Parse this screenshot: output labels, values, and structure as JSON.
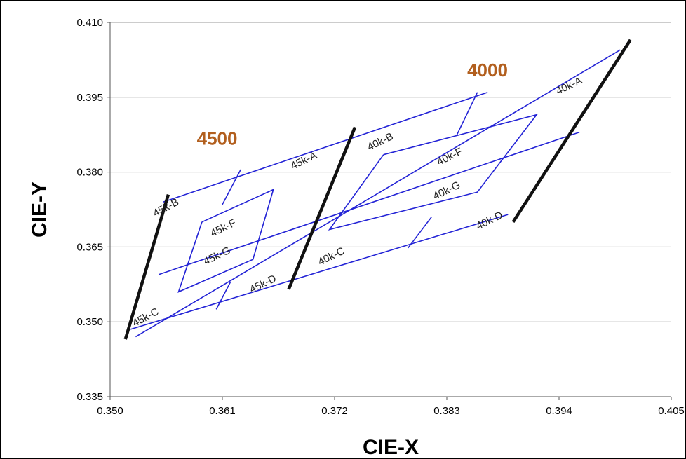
{
  "chart_data": {
    "type": "line",
    "xlabel": "CIE-X",
    "ylabel": "CIE-Y",
    "xlim": [
      0.35,
      0.405
    ],
    "ylim": [
      0.335,
      0.41
    ],
    "x_ticks": [
      "0.350",
      "0.361",
      "0.372",
      "0.383",
      "0.394",
      "0.405"
    ],
    "y_ticks": [
      "0.335",
      "0.350",
      "0.365",
      "0.380",
      "0.395",
      "0.410"
    ],
    "grid": "horizontal",
    "colors": {
      "bins": "#2323d6",
      "isotherms": "#111111",
      "cct_labels": "#b25f1e",
      "grid": "#9a9a9a"
    },
    "cct_labels": [
      {
        "text": "4500",
        "x": 0.3585,
        "y": 0.3855
      },
      {
        "text": "4000",
        "x": 0.385,
        "y": 0.3992
      }
    ],
    "isotherm_lines": [
      {
        "name": "4500 left",
        "x": [
          0.3515,
          0.3557
        ],
        "y": [
          0.3465,
          0.3755
        ]
      },
      {
        "name": "4500 / 4000 boundary",
        "x": [
          0.3675,
          0.374
        ],
        "y": [
          0.3565,
          0.389
        ]
      },
      {
        "name": "4000 right",
        "x": [
          0.3895,
          0.401
        ],
        "y": [
          0.37,
          0.4065
        ]
      }
    ],
    "bin_lines": [
      {
        "x": [
          0.3525,
          0.4
        ],
        "y": [
          0.347,
          0.4045
        ]
      },
      {
        "x": [
          0.3548,
          0.396
        ],
        "y": [
          0.3595,
          0.388
        ]
      },
      {
        "x": [
          0.3552,
          0.387
        ],
        "y": [
          0.374,
          0.396
        ]
      },
      {
        "x": [
          0.352,
          0.389
        ],
        "y": [
          0.3485,
          0.3715
        ]
      },
      {
        "x": [
          0.3628,
          0.361
        ],
        "y": [
          0.3805,
          0.3735
        ]
      },
      {
        "x": [
          0.386,
          0.384
        ],
        "y": [
          0.396,
          0.3875
        ]
      },
      {
        "x": [
          0.3618,
          0.3604
        ],
        "y": [
          0.358,
          0.3525
        ]
      },
      {
        "x": [
          0.3815,
          0.3792
        ],
        "y": [
          0.371,
          0.3648
        ]
      },
      {
        "x": [
          0.359,
          0.366,
          0.364,
          0.3567,
          0.359
        ],
        "y": [
          0.37,
          0.3765,
          0.3625,
          0.356,
          0.37
        ]
      },
      {
        "x": [
          0.3768,
          0.3918,
          0.386,
          0.3715,
          0.3768
        ],
        "y": [
          0.3835,
          0.3915,
          0.376,
          0.3685,
          0.3835
        ]
      }
    ],
    "bin_labels": [
      {
        "text": "45k-B",
        "x": 0.3555,
        "y": 0.3728,
        "angle": -28
      },
      {
        "text": "45k-F",
        "x": 0.3611,
        "y": 0.3687,
        "angle": -26
      },
      {
        "text": "45k-G",
        "x": 0.3605,
        "y": 0.3631,
        "angle": -26
      },
      {
        "text": "45k-C",
        "x": 0.3535,
        "y": 0.3508,
        "angle": -28
      },
      {
        "text": "45k-D",
        "x": 0.365,
        "y": 0.3575,
        "angle": -26
      },
      {
        "text": "45k-A",
        "x": 0.369,
        "y": 0.3822,
        "angle": -26
      },
      {
        "text": "40k-B",
        "x": 0.3765,
        "y": 0.386,
        "angle": -26
      },
      {
        "text": "40k-C",
        "x": 0.3717,
        "y": 0.363,
        "angle": -26
      },
      {
        "text": "40k-F",
        "x": 0.3833,
        "y": 0.383,
        "angle": -26
      },
      {
        "text": "40k-G",
        "x": 0.383,
        "y": 0.3762,
        "angle": -26
      },
      {
        "text": "40k-D",
        "x": 0.3872,
        "y": 0.3702,
        "angle": -26
      },
      {
        "text": "40k-A",
        "x": 0.395,
        "y": 0.3972,
        "angle": -26
      }
    ]
  }
}
